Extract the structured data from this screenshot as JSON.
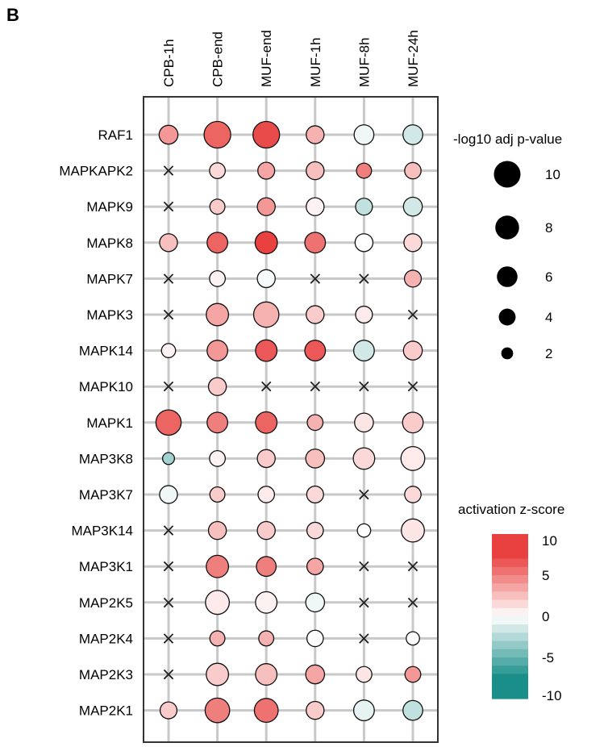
{
  "panel_label": "B",
  "chart_data": {
    "type": "bubble-heatmap",
    "columns": [
      "CPB-1h",
      "CPB-end",
      "MUF-end",
      "MUF-1h",
      "MUF-8h",
      "MUF-24h"
    ],
    "rows": [
      "RAF1",
      "MAPKAPK2",
      "MAPK9",
      "MAPK8",
      "MAPK7",
      "MAPK3",
      "MAPK14",
      "MAPK10",
      "MAPK1",
      "MAP3K8",
      "MAP3K7",
      "MAP3K14",
      "MAP3K1",
      "MAP2K5",
      "MAP2K4",
      "MAP2K3",
      "MAP2K1"
    ],
    "size_values": [
      [
        5,
        10,
        10,
        4.5,
        5.5,
        5.5
      ],
      [
        null,
        3.5,
        4,
        4.5,
        3.2,
        3.8
      ],
      [
        null,
        3.2,
        4.5,
        4.5,
        4,
        5
      ],
      [
        4.5,
        6,
        7,
        6,
        4.5,
        4.5
      ],
      [
        null,
        3.5,
        4.5,
        null,
        null,
        4
      ],
      [
        null,
        7,
        9,
        4.5,
        4,
        null
      ],
      [
        2.8,
        6,
        6.5,
        6,
        6,
        5
      ],
      [
        null,
        4.5,
        null,
        null,
        null,
        null
      ],
      [
        9,
        6,
        6.5,
        3.5,
        5,
        6
      ],
      [
        2,
        3.5,
        4.5,
        5,
        6.5,
        8
      ],
      [
        4.5,
        3.2,
        3.8,
        4,
        null,
        3.8
      ],
      [
        null,
        4.5,
        4.5,
        3.8,
        2.5,
        7.5
      ],
      [
        null,
        7,
        5.5,
        3.8,
        null,
        null
      ],
      [
        null,
        8,
        6.5,
        5,
        null,
        null
      ],
      [
        null,
        3.2,
        3.2,
        3.8,
        null,
        2.5
      ],
      [
        null,
        7,
        6.5,
        5,
        3.5,
        3.5
      ],
      [
        4,
        8.5,
        8,
        4.5,
        6,
        5.5
      ]
    ],
    "zscore_values": [
      [
        4,
        6,
        7,
        3,
        -0.5,
        -1.5
      ],
      [
        null,
        1.5,
        3.5,
        2.5,
        5,
        2.5
      ],
      [
        null,
        2,
        4,
        0.5,
        -2,
        -1.5
      ],
      [
        2.5,
        6,
        8,
        5.5,
        0,
        1.5
      ],
      [
        null,
        0.5,
        -0.3,
        null,
        null,
        3
      ],
      [
        null,
        3.5,
        3,
        2,
        0.8,
        null
      ],
      [
        0.5,
        4,
        6.5,
        6.5,
        -1.5,
        2
      ],
      [
        null,
        2,
        null,
        null,
        null,
        null
      ],
      [
        6,
        5,
        6,
        3,
        1,
        2
      ],
      [
        -3,
        0.5,
        2,
        2.5,
        1.5,
        0.8
      ],
      [
        -0.5,
        2,
        0.8,
        1.5,
        null,
        1.5
      ],
      [
        null,
        2.5,
        2,
        1.5,
        0,
        1
      ],
      [
        null,
        5,
        5,
        3.5,
        null,
        null
      ],
      [
        null,
        0.8,
        0.5,
        -0.5,
        null,
        null
      ],
      [
        null,
        3,
        3,
        0,
        null,
        0
      ],
      [
        null,
        2,
        2.5,
        3.5,
        1,
        4
      ],
      [
        2,
        5,
        5.5,
        2,
        -0.8,
        -2
      ]
    ],
    "size_legend": {
      "title": "-log10 adj p-value",
      "labels": [
        "10",
        "8",
        "6",
        "4",
        "2"
      ],
      "values": [
        10,
        8,
        6,
        4,
        2
      ]
    },
    "color_legend": {
      "title": "activation z-score",
      "labels": [
        "10",
        "5",
        "0",
        "-5",
        "-10"
      ],
      "values": [
        10,
        5,
        0,
        -5,
        -10
      ]
    },
    "colors": {
      "positive": "#e8413f",
      "neutral": "#ffffff",
      "negative": "#1a8f8a",
      "grid": "#c8c8c8",
      "frame": "#333333",
      "missing_marker": "#222222"
    },
    "missing_marker": "×"
  }
}
